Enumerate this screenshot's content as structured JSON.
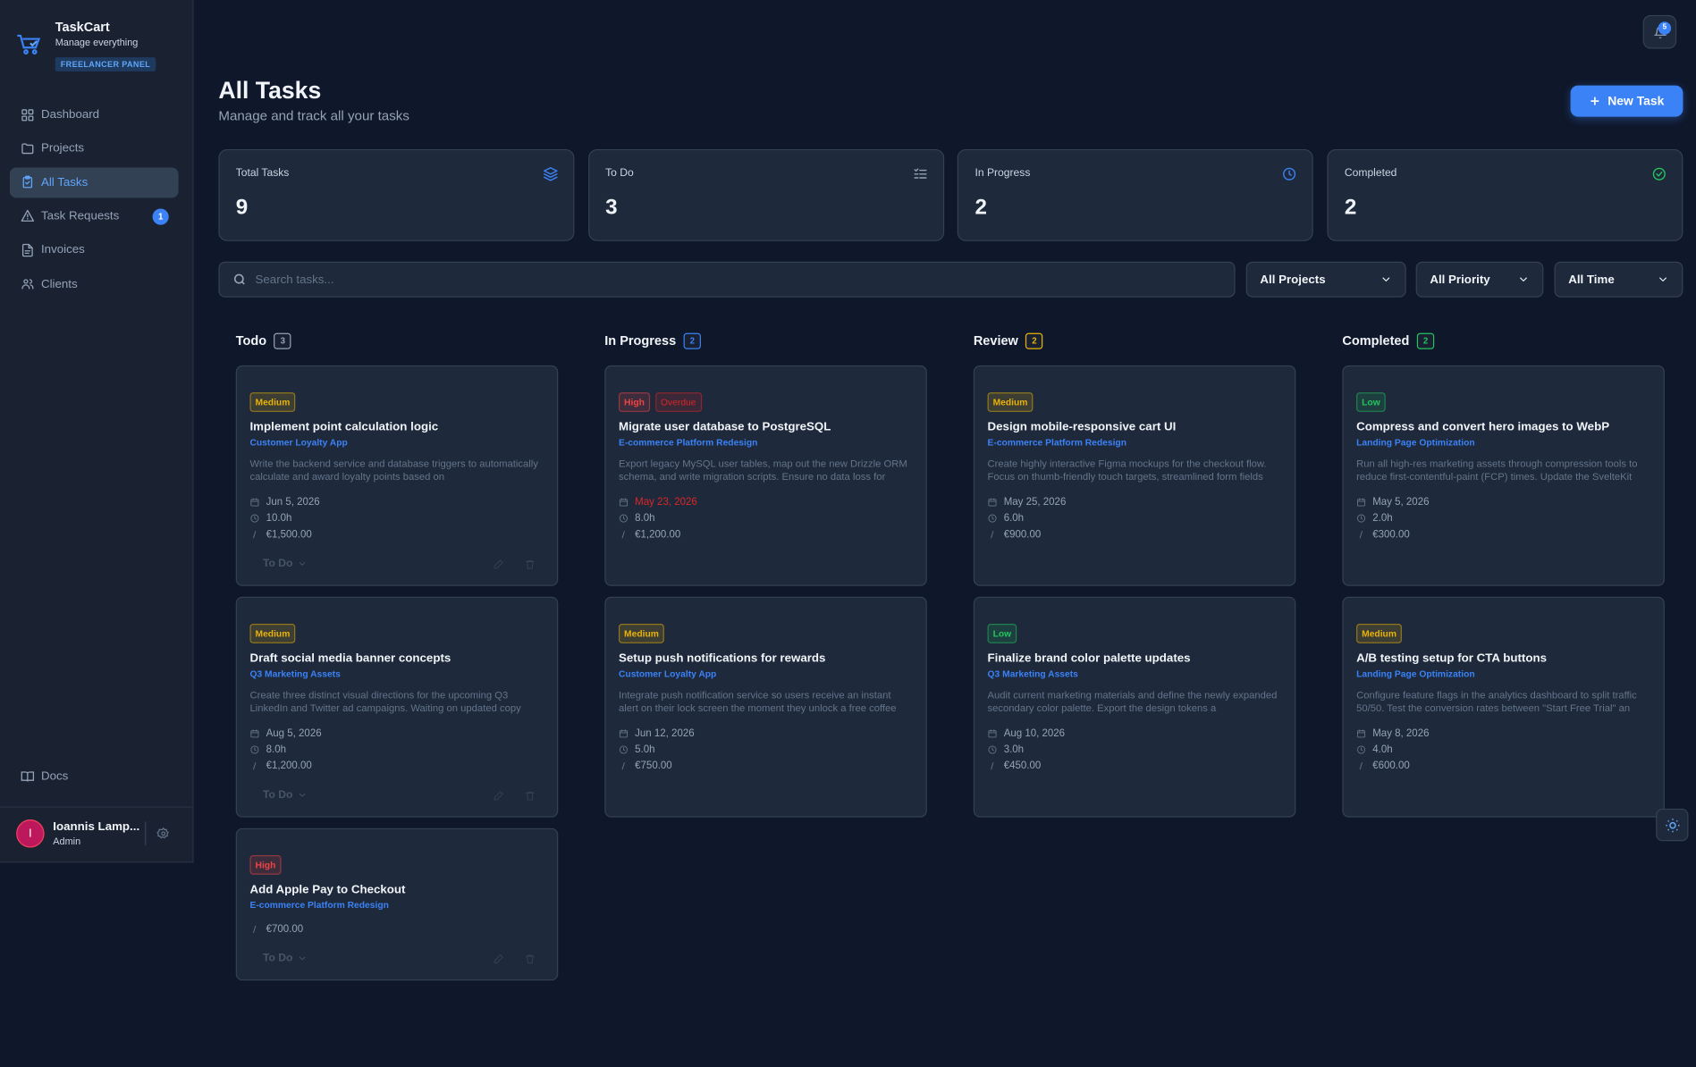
{
  "sidebar": {
    "brand": "TaskCart",
    "tagline": "Manage everything",
    "badge": "FREELANCER PANEL",
    "nav": [
      {
        "label": "Dashboard"
      },
      {
        "label": "Projects"
      },
      {
        "label": "All Tasks",
        "active": true
      },
      {
        "label": "Task Requests",
        "count": 1
      },
      {
        "label": "Invoices"
      },
      {
        "label": "Clients"
      }
    ],
    "docs": "Docs",
    "user": {
      "initial": "I",
      "name": "Ioannis Lamp...",
      "role": "Admin"
    }
  },
  "notifications": 5,
  "header": {
    "title": "All Tasks",
    "subtitle": "Manage and track all your tasks",
    "new_task": "New Task"
  },
  "stats": [
    {
      "label": "Total Tasks",
      "value": 9,
      "color": "#3b82f6"
    },
    {
      "label": "To Do",
      "value": 3,
      "color": "#94a3b8"
    },
    {
      "label": "In Progress",
      "value": 2,
      "color": "#3b82f6"
    },
    {
      "label": "Completed",
      "value": 2,
      "color": "#22c55e"
    }
  ],
  "search_placeholder": "Search tasks...",
  "filters": [
    "All Projects",
    "All Priority",
    "All Time"
  ],
  "columns": [
    {
      "title": "Todo",
      "count": 3,
      "color": "#94a3b8",
      "cards": [
        {
          "priority": "Medium",
          "priority_color": "#eab308",
          "title": "Implement point calculation logic",
          "project": "Customer Loyalty App",
          "description": "Write the backend service and database triggers to automatically calculate and award loyalty points based on",
          "due": "Jun 5, 2026",
          "hours": "10.0h",
          "amount": "€1,500.00",
          "status": "To Do"
        },
        {
          "priority": "Medium",
          "priority_color": "#eab308",
          "title": "Draft social media banner concepts",
          "project": "Q3 Marketing Assets",
          "description": "Create three distinct visual directions for the upcoming Q3 LinkedIn and Twitter ad campaigns. Waiting on updated copy",
          "due": "Aug 5, 2026",
          "hours": "8.0h",
          "amount": "€1,200.00",
          "status": "To Do"
        },
        {
          "priority": "High",
          "priority_color": "#ef4444",
          "title": "Add Apple Pay to Checkout",
          "project": "E-commerce Platform Redesign",
          "amount": "€700.00",
          "status": "To Do"
        }
      ]
    },
    {
      "title": "In Progress",
      "count": 2,
      "color": "#3b82f6",
      "cards": [
        {
          "priority": "High",
          "priority_color": "#ef4444",
          "flag": "Overdue",
          "title": "Migrate user database to PostgreSQL",
          "project": "E-commerce Platform Redesign",
          "description": "Export legacy MySQL user tables, map out the new Drizzle ORM schema, and write migration scripts. Ensure no data loss for",
          "due": "May 23, 2026",
          "due_overdue": true,
          "hours": "8.0h",
          "amount": "€1,200.00"
        },
        {
          "priority": "Medium",
          "priority_color": "#eab308",
          "title": "Setup push notifications for rewards",
          "project": "Customer Loyalty App",
          "description": "Integrate push notification service so users receive an instant alert on their lock screen the moment they unlock a free coffee",
          "due": "Jun 12, 2026",
          "hours": "5.0h",
          "amount": "€750.00"
        }
      ]
    },
    {
      "title": "Review",
      "count": 2,
      "color": "#eab308",
      "cards": [
        {
          "priority": "Medium",
          "priority_color": "#eab308",
          "title": "Design mobile-responsive cart UI",
          "project": "E-commerce Platform Redesign",
          "description": "Create highly interactive Figma mockups for the checkout flow. Focus on thumb-friendly touch targets, streamlined form fields",
          "due": "May 25, 2026",
          "hours": "6.0h",
          "amount": "€900.00"
        },
        {
          "priority": "Low",
          "priority_color": "#22c55e",
          "title": "Finalize brand color palette updates",
          "project": "Q3 Marketing Assets",
          "description": "Audit current marketing materials and define the newly expanded secondary color palette. Export the design tokens a",
          "due": "Aug 10, 2026",
          "hours": "3.0h",
          "amount": "€450.00"
        }
      ]
    },
    {
      "title": "Completed",
      "count": 2,
      "color": "#22c55e",
      "cards": [
        {
          "priority": "Low",
          "priority_color": "#22c55e",
          "title": "Compress and convert hero images to WebP",
          "project": "Landing Page Optimization",
          "description": "Run all high-res marketing assets through compression tools to reduce first-contentful-paint (FCP) times. Update the SvelteKit",
          "due": "May 5, 2026",
          "hours": "2.0h",
          "amount": "€300.00"
        },
        {
          "priority": "Medium",
          "priority_color": "#eab308",
          "title": "A/B testing setup for CTA buttons",
          "project": "Landing Page Optimization",
          "description": "Configure feature flags in the analytics dashboard to split traffic 50/50. Test the conversion rates between \"Start Free Trial\" an",
          "due": "May 8, 2026",
          "hours": "4.0h",
          "amount": "€600.00"
        }
      ]
    }
  ]
}
